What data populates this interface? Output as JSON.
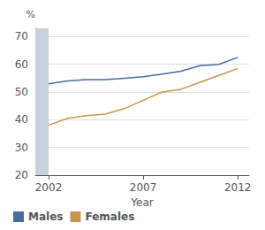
{
  "chart_data": {
    "type": "line",
    "xlabel": "Year",
    "ylabel": "%",
    "series": [
      {
        "name": "Males",
        "color": "#4a6b9f",
        "x": [
          2002,
          2003,
          2004,
          2005,
          2006,
          2007,
          2008,
          2009,
          2010,
          2011,
          2012
        ],
        "values": [
          53.0,
          54.0,
          54.5,
          54.5,
          55.0,
          55.5,
          56.5,
          57.5,
          59.5,
          60.0,
          62.5
        ]
      },
      {
        "name": "Females",
        "color": "#c8964a",
        "x": [
          2002,
          2003,
          2004,
          2005,
          2006,
          2007,
          2008,
          2009,
          2010,
          2011,
          2012
        ],
        "values": [
          38.0,
          40.5,
          41.5,
          42.0,
          44.0,
          47.0,
          50.0,
          51.0,
          53.5,
          56.0,
          58.5
        ]
      }
    ],
    "shaded_region": {
      "x": [
        2001.3,
        2002.0
      ],
      "color": "#c8d0dc"
    },
    "xlim": [
      2001.3,
      2012.6
    ],
    "xticks": [
      2002,
      2007,
      2012
    ],
    "ylim": [
      20,
      73
    ],
    "yticks": [
      20,
      30,
      40,
      50,
      60,
      70
    ],
    "grid": true,
    "legend": "lower left"
  }
}
